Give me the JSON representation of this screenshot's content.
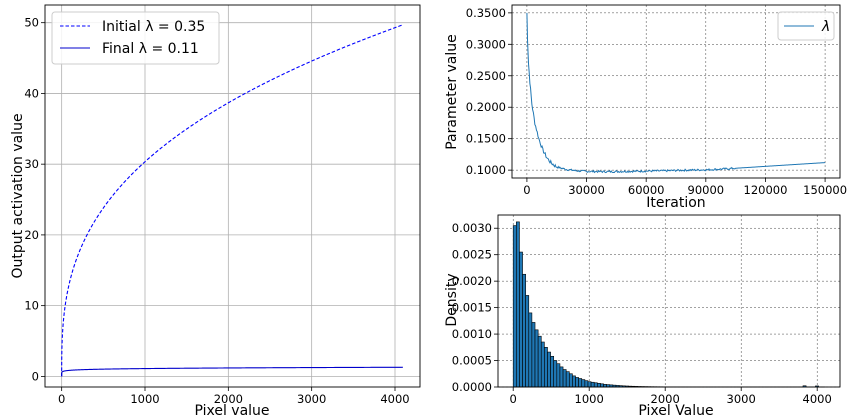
{
  "chart_data": [
    {
      "type": "line",
      "xlabel": "Pixel value",
      "ylabel": "Output activation value",
      "xlim": [
        -200,
        4300
      ],
      "ylim": [
        -1.5,
        52.5
      ],
      "xticks": [
        0,
        1000,
        2000,
        3000,
        4000
      ],
      "yticks": [
        0,
        10,
        20,
        30,
        40,
        50
      ],
      "grid": true,
      "legend_position": "top-left",
      "series": [
        {
          "name": "Initial  λ = 0.35",
          "lambda": 0.35,
          "style": "dashed",
          "color": "#0000ff",
          "x": [
            0,
            50,
            100,
            250,
            500,
            1000,
            1500,
            2000,
            2500,
            3000,
            3500,
            4095
          ],
          "y": [
            0,
            9.1,
            11.9,
            17.0,
            22.3,
            29.0,
            34.2,
            38.0,
            41.5,
            44.5,
            47.3,
            49.7
          ]
        },
        {
          "name": "Final λ = 0.11",
          "lambda": 0.11,
          "style": "solid",
          "color": "#0000cc",
          "x": [
            0,
            50,
            100,
            250,
            500,
            1000,
            1500,
            2000,
            2500,
            3000,
            3500,
            4095
          ],
          "y": [
            0,
            0.48,
            0.59,
            0.75,
            0.87,
            1.0,
            1.08,
            1.14,
            1.18,
            1.22,
            1.26,
            1.29
          ]
        }
      ]
    },
    {
      "type": "line",
      "xlabel": "Iteration",
      "ylabel": "Parameter value",
      "xlim": [
        -7500,
        157500
      ],
      "ylim": [
        0.0875,
        0.3625
      ],
      "xticks": [
        0,
        30000,
        60000,
        90000,
        120000,
        150000
      ],
      "yticks": [
        0.1,
        0.15,
        0.2,
        0.25,
        0.3,
        0.35
      ],
      "ytick_labels": [
        "0.1000",
        "0.1500",
        "0.2000",
        "0.2500",
        "0.3000",
        "0.3500"
      ],
      "grid": "dashed",
      "legend_position": "top-right",
      "series": [
        {
          "name": "λ",
          "color": "#1f77b4",
          "x": [
            0,
            300,
            800,
            1500,
            2500,
            4000,
            6000,
            8000,
            10000,
            12000,
            15000,
            20000,
            25000,
            30000,
            40000,
            50000,
            60000,
            70000,
            80000,
            90000,
            100000,
            105000,
            110000,
            120000,
            130000,
            140000,
            150000
          ],
          "y": [
            0.35,
            0.31,
            0.27,
            0.24,
            0.205,
            0.175,
            0.15,
            0.132,
            0.12,
            0.112,
            0.105,
            0.101,
            0.099,
            0.098,
            0.0975,
            0.098,
            0.0985,
            0.099,
            0.1,
            0.1005,
            0.102,
            0.103,
            0.104,
            0.106,
            0.108,
            0.11,
            0.112
          ]
        }
      ]
    },
    {
      "type": "bar",
      "xlabel": "Pixel Value",
      "ylabel": "Density",
      "xlim": [
        -200,
        4300
      ],
      "ylim": [
        0,
        0.00325
      ],
      "xticks": [
        0,
        1000,
        2000,
        3000,
        4000
      ],
      "yticks": [
        0,
        0.0005,
        0.001,
        0.0015,
        0.002,
        0.0025,
        0.003
      ],
      "ytick_labels": [
        "0.0000",
        "0.0005",
        "0.0010",
        "0.0015",
        "0.0020",
        "0.0025",
        "0.0030"
      ],
      "grid": "dashed",
      "bin_width": 41,
      "bin_start": 0,
      "values": [
        0.00305,
        0.00312,
        0.00255,
        0.00213,
        0.00173,
        0.0014,
        0.00122,
        0.00108,
        0.00096,
        0.00085,
        0.00075,
        0.00066,
        0.00058,
        0.0005,
        0.00044,
        0.00038,
        0.00033,
        0.00029,
        0.00025,
        0.00021,
        0.00018,
        0.00016,
        0.00014,
        0.00012,
        0.0001,
        9e-05,
        8e-05,
        7e-05,
        6e-05,
        5e-05,
        4.5e-05,
        4e-05,
        3.5e-05,
        3e-05,
        2.6e-05,
        2.2e-05,
        1.9e-05,
        1.6e-05,
        1.4e-05,
        1.2e-05,
        1e-05,
        9e-06,
        8e-06,
        7e-06,
        6e-06,
        5.5e-06,
        5e-06,
        4.5e-06,
        4e-06,
        3.5e-06,
        3e-06,
        3e-06,
        2.5e-06,
        2.5e-06,
        2e-06,
        2e-06,
        2e-06,
        1.5e-06,
        1.5e-06,
        1.5e-06,
        1e-06,
        1e-06,
        1e-06,
        1e-06,
        1e-06,
        1e-06,
        1e-06,
        1e-06,
        1e-06,
        1e-06,
        1e-06,
        1e-06,
        1e-06,
        1e-06,
        1e-06,
        1e-06,
        1e-06,
        1e-06,
        1e-06,
        1e-06,
        1e-06,
        1e-06,
        1e-06,
        1e-06,
        1e-06,
        1e-06,
        1e-06,
        1e-06,
        1e-06,
        1e-06,
        1e-06,
        1e-06,
        1e-06,
        2.3e-05,
        1e-06,
        1e-06,
        1e-06,
        2e-05,
        1e-06,
        1e-06
      ],
      "bar_color": "#1f77b4",
      "edge_color": "#000000"
    }
  ]
}
